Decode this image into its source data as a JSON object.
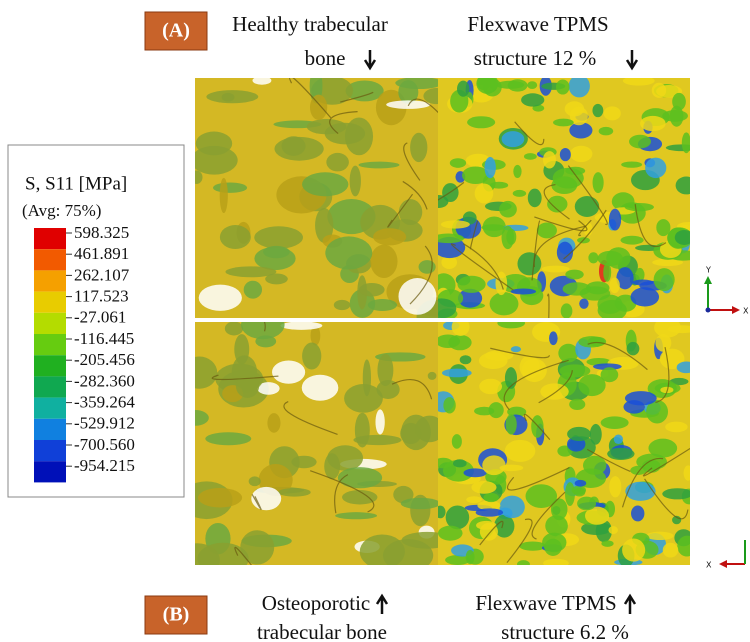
{
  "panels": [
    {
      "tag": "(A)",
      "left_caption": [
        "Healthy trabecular",
        "bone"
      ],
      "right_caption": [
        "Flexwave TPMS",
        "structure 12 %"
      ]
    },
    {
      "tag": "(B)",
      "left_caption": [
        "Osteoporotic",
        "trabecular bone"
      ],
      "right_caption": [
        "Flexwave TPMS",
        "structure 6.2 %"
      ]
    }
  ],
  "legend": {
    "title": "S, S11  [MPa]",
    "subtitle": "(Avg: 75%)",
    "levels": [
      "598.325",
      "461.891",
      "262.107",
      "117.523",
      "-27.061",
      "-116.445",
      "-205.456",
      "-282.360",
      "-359.264",
      "-529.912",
      "-700.560",
      "-954.215"
    ]
  },
  "triads": [
    {
      "y": "Y",
      "x": "X"
    },
    {
      "x": "X"
    }
  ]
}
